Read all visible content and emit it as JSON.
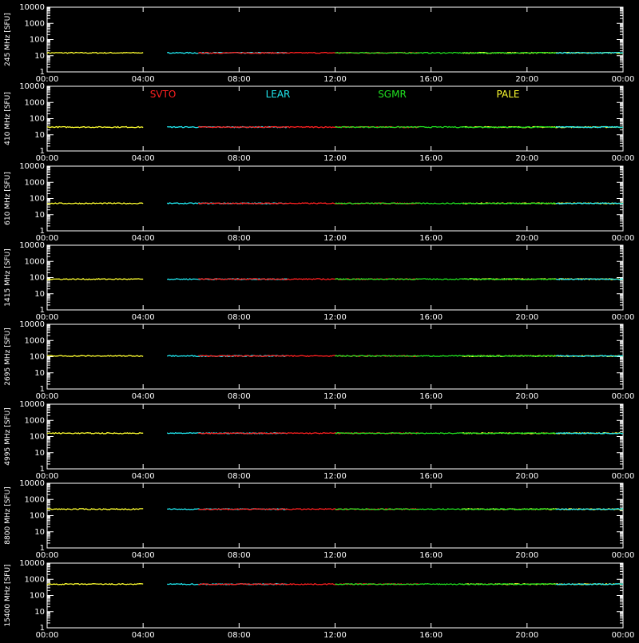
{
  "chart_data": {
    "type": "line",
    "x_ticks": [
      "00:00",
      "04:00",
      "08:00",
      "12:00",
      "16:00",
      "20:00",
      "00:00"
    ],
    "x_range_hours": [
      0,
      24
    ],
    "y_scale": "log",
    "y_ticks": [
      "10000",
      "1000",
      "100",
      "10",
      "1"
    ],
    "y_range": [
      1,
      10000
    ],
    "legend": {
      "placement": "second-panel-top",
      "entries": [
        {
          "name": "SVTO",
          "color": "#ff2020"
        },
        {
          "name": "LEAR",
          "color": "#20e8f0"
        },
        {
          "name": "SGMR",
          "color": "#20e020"
        },
        {
          "name": "PALE",
          "color": "#ffff30"
        }
      ]
    },
    "panels": [
      {
        "ylabel": "245 MHz [SFU]",
        "baseline": 15
      },
      {
        "ylabel": "410 MHz [SFU]",
        "baseline": 30
      },
      {
        "ylabel": "610 MHz [SFU]",
        "baseline": 50
      },
      {
        "ylabel": "1415 MHz [SFU]",
        "baseline": 80
      },
      {
        "ylabel": "2695 MHz [SFU]",
        "baseline": 110
      },
      {
        "ylabel": "4995 MHz [SFU]",
        "baseline": 160
      },
      {
        "ylabel": "8800 MHz [SFU]",
        "baseline": 250
      },
      {
        "ylabel": "15400 MHz [SFU]",
        "baseline": 500
      }
    ],
    "series": [
      {
        "name": "PALE",
        "segments_hours": [
          [
            0,
            4.0
          ],
          [
            17.3,
            24
          ]
        ]
      },
      {
        "name": "LEAR",
        "segments_hours": [
          [
            5.0,
            10.0
          ],
          [
            21.2,
            24
          ]
        ]
      },
      {
        "name": "SVTO",
        "segments_hours": [
          [
            6.3,
            15.5
          ]
        ]
      },
      {
        "name": "SGMR",
        "segments_hours": [
          [
            12.0,
            21.2
          ]
        ]
      }
    ]
  }
}
